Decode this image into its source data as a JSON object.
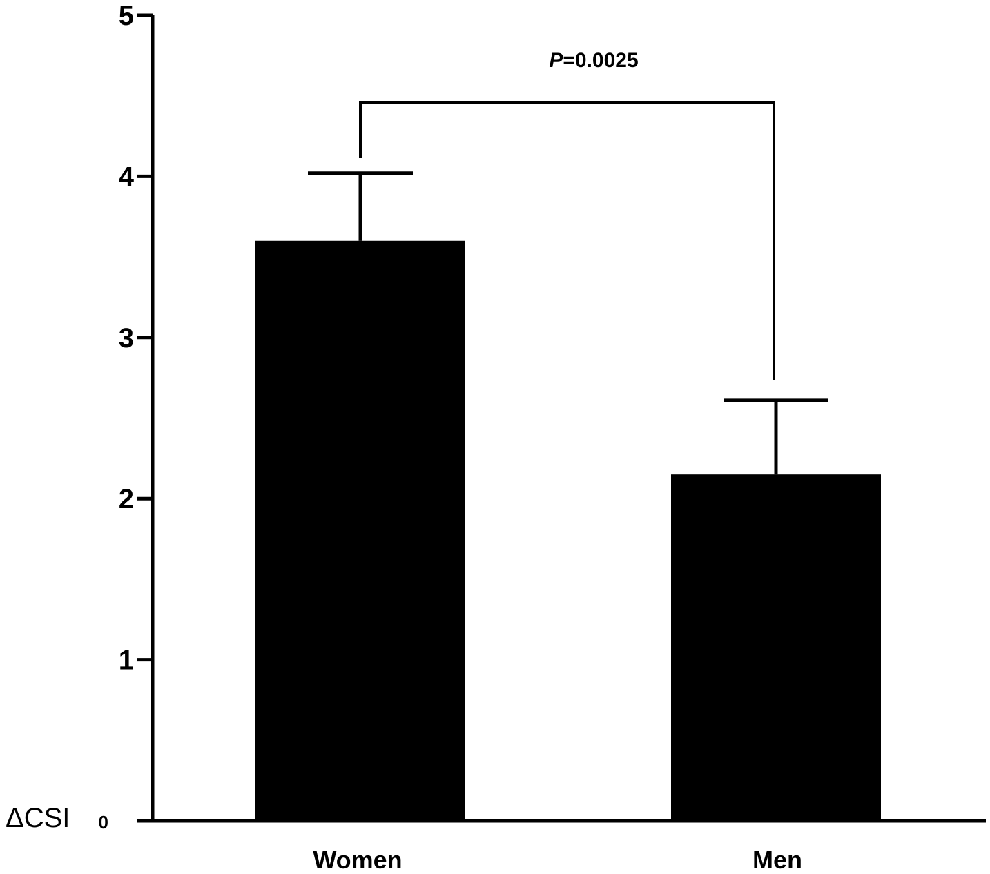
{
  "chart_data": {
    "type": "bar",
    "title": "",
    "xlabel": "",
    "ylabel": "ΔCSI",
    "ylim": [
      0,
      5
    ],
    "yticks": [
      "0",
      "1",
      "2",
      "3",
      "4",
      "5"
    ],
    "categories": [
      "Women",
      "Men"
    ],
    "values": [
      3.6,
      2.15
    ],
    "error_upper": [
      4.02,
      2.61
    ],
    "bar_color": "#000000",
    "grid": false,
    "annotation": {
      "p_symbol": "P",
      "p_value": "=0.0025",
      "between": [
        "Women",
        "Men"
      ]
    }
  }
}
